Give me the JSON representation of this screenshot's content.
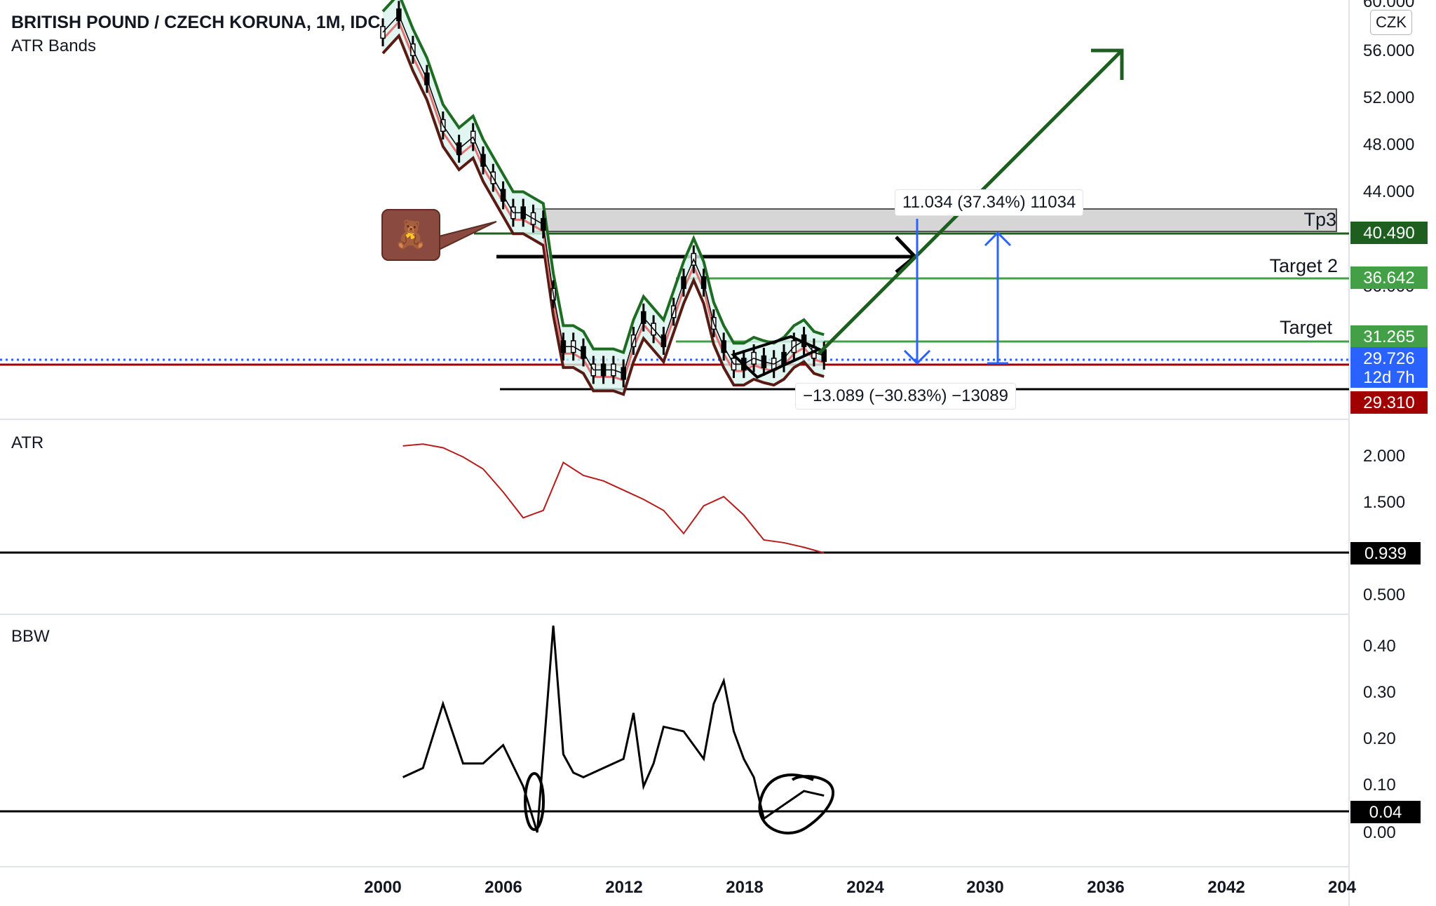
{
  "header": {
    "title": "BRITISH POUND / CZECH KORUNA, 1M, IDC",
    "indicator": "ATR Bands",
    "currency": "CZK"
  },
  "panes": {
    "atr_label": "ATR",
    "bbw_label": "BBW"
  },
  "annotations": {
    "tp3": "Tp3",
    "target2": "Target 2",
    "target": "Target",
    "measure_up": "11.034 (37.34%) 11034",
    "measure_down": "−13.089 (−30.83%) −13089",
    "bear_icon": "🧸"
  },
  "price_axis": {
    "ticks": [
      "60.000",
      "56.000",
      "52.000",
      "48.000",
      "44.000",
      "36.000"
    ],
    "badges": [
      {
        "value": "40.490",
        "color": "#1e5f20"
      },
      {
        "value": "36.642",
        "color": "#43a047"
      },
      {
        "value": "31.265",
        "color": "#43a047"
      },
      {
        "value": "29.726",
        "sub": "12d 7h",
        "color": "#2962ff"
      },
      {
        "value": "29.310",
        "color": "#a00000"
      }
    ]
  },
  "atr_axis": {
    "ticks": [
      "2.000",
      "1.500",
      "0.500"
    ],
    "badge": "0.939"
  },
  "bbw_axis": {
    "ticks": [
      "0.40",
      "0.30",
      "0.20",
      "0.10",
      "0.00"
    ],
    "badge": "0.04"
  },
  "time_axis": {
    "ticks": [
      "2000",
      "2006",
      "2012",
      "2018",
      "2024",
      "2030",
      "2036",
      "2042",
      "204"
    ]
  },
  "chart_data": [
    {
      "type": "line",
      "title": "BRITISH POUND / CZECH KORUNA, 1M, IDC",
      "ylim": [
        26,
        60
      ],
      "xlim": [
        1999,
        2047
      ],
      "series": [
        {
          "name": "ATR Bands",
          "x": [
            2000.0,
            2000.8,
            2001.5,
            2002.2,
            2003.0,
            2003.8,
            2004.5,
            2005.0,
            2005.5,
            2006.0,
            2006.5,
            2007.0,
            2007.5,
            2008.0,
            2008.5,
            2009.0,
            2009.5,
            2010.0,
            2010.5,
            2011.0,
            2011.5,
            2012.0,
            2012.5,
            2013.0,
            2013.5,
            2014.0,
            2014.5,
            2015.0,
            2015.5,
            2016.0,
            2016.5,
            2017.0,
            2017.5,
            2018.0,
            2018.5,
            2019.0,
            2019.5,
            2020.0,
            2020.5,
            2021.0,
            2021.5,
            2022.0
          ],
          "values": [
            57.5,
            59.0,
            56.0,
            53.5,
            49.5,
            47.5,
            48.5,
            46.5,
            45.0,
            43.5,
            42.0,
            42.0,
            41.5,
            41.0,
            35.0,
            30.5,
            30.5,
            30.0,
            28.5,
            28.5,
            28.5,
            28.2,
            31.0,
            33.0,
            32.0,
            31.0,
            33.5,
            36.0,
            38.0,
            36.0,
            32.5,
            30.5,
            29.0,
            29.0,
            29.5,
            29.2,
            29.0,
            29.5,
            30.5,
            31.0,
            30.0,
            29.726
          ]
        }
      ],
      "levels": [
        {
          "name": "Tp3",
          "value": 40.49
        },
        {
          "name": "Target 2",
          "value": 36.642
        },
        {
          "name": "Target",
          "value": 31.265
        },
        {
          "value": 29.726
        },
        {
          "value": 29.31
        }
      ]
    },
    {
      "type": "line",
      "title": "ATR",
      "ylim": [
        0.3,
        2.3
      ],
      "xlim": [
        1999,
        2047
      ],
      "series": [
        {
          "name": "ATR",
          "x": [
            2001.0,
            2002.0,
            2003.0,
            2004.0,
            2005.0,
            2006.0,
            2007.0,
            2008.0,
            2009.0,
            2010.0,
            2011.0,
            2012.0,
            2013.0,
            2014.0,
            2015.0,
            2016.0,
            2017.0,
            2018.0,
            2019.0,
            2020.0,
            2021.0,
            2022.0
          ],
          "values": [
            2.1,
            2.12,
            2.08,
            1.98,
            1.85,
            1.6,
            1.32,
            1.4,
            1.92,
            1.78,
            1.72,
            1.62,
            1.52,
            1.4,
            1.15,
            1.45,
            1.55,
            1.35,
            1.08,
            1.05,
            1.0,
            0.939
          ]
        }
      ],
      "levels": [
        {
          "value": 0.939
        }
      ]
    },
    {
      "type": "line",
      "title": "BBW",
      "ylim": [
        -0.02,
        0.45
      ],
      "xlim": [
        1999,
        2047
      ],
      "series": [
        {
          "name": "BBW",
          "x": [
            2001.0,
            2002.0,
            2003.0,
            2004.0,
            2005.0,
            2006.0,
            2007.0,
            2007.7,
            2008.5,
            2009.0,
            2009.5,
            2010.0,
            2011.0,
            2012.0,
            2012.5,
            2013.0,
            2013.5,
            2014.0,
            2015.0,
            2016.0,
            2016.5,
            2017.0,
            2017.5,
            2018.0,
            2018.5,
            2019.0,
            2020.0,
            2021.0,
            2022.0
          ],
          "values": [
            0.12,
            0.14,
            0.28,
            0.15,
            0.15,
            0.19,
            0.1,
            0.0,
            0.45,
            0.17,
            0.13,
            0.12,
            0.14,
            0.16,
            0.26,
            0.1,
            0.15,
            0.23,
            0.22,
            0.16,
            0.28,
            0.33,
            0.22,
            0.16,
            0.12,
            0.03,
            0.06,
            0.09,
            0.08
          ]
        }
      ],
      "levels": [
        {
          "value": 0.04
        }
      ]
    }
  ]
}
